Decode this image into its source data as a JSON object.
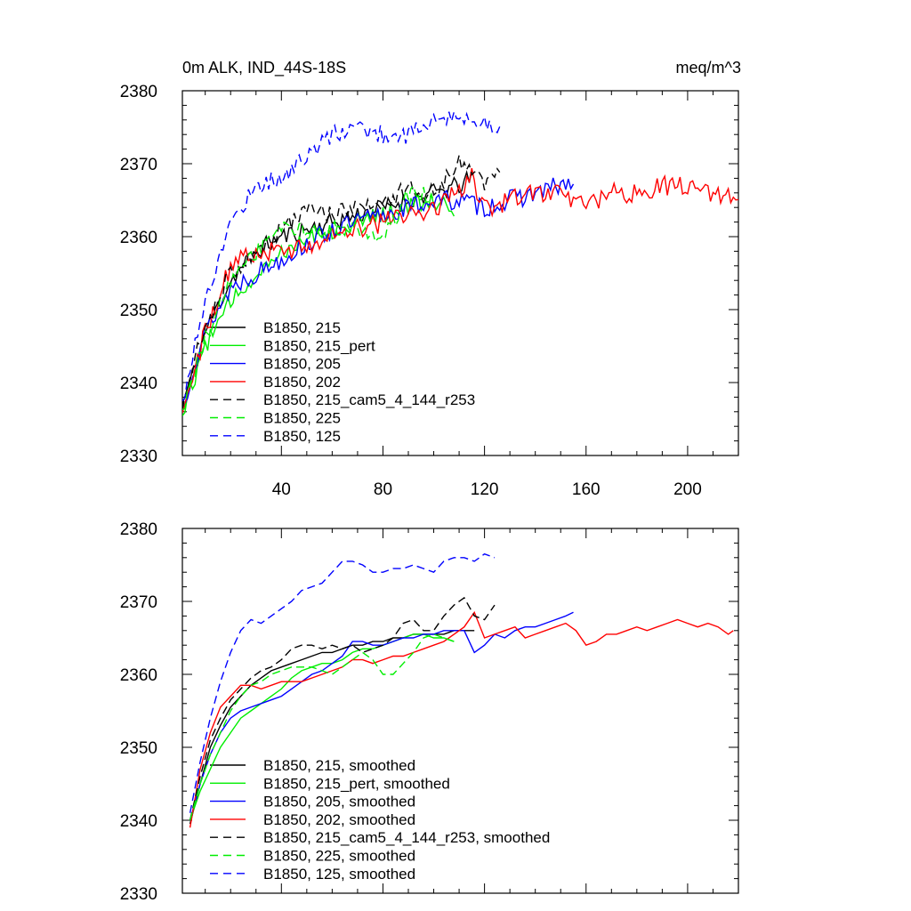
{
  "figure": {
    "title_left": "0m ALK, IND_44S-18S",
    "title_right": "meq/m^3"
  },
  "chart_data": [
    {
      "type": "line",
      "title": "0m ALK, IND_44S-18S",
      "units": "meq/m^3",
      "xlim": [
        1,
        220
      ],
      "ylim": [
        2330,
        2380
      ],
      "x_ticks": [
        40,
        80,
        120,
        160,
        200
      ],
      "y_ticks": [
        2330,
        2340,
        2350,
        2360,
        2370,
        2380
      ],
      "legend_position": "lower-left",
      "series": [
        {
          "name": "B1850, 215",
          "color": "#000000",
          "dash": "solid",
          "noise": 1.3,
          "seed": 11,
          "x": [
            1,
            5,
            10,
            20,
            30,
            40,
            50,
            60,
            70,
            80,
            90,
            100,
            110,
            115
          ],
          "y": [
            2337,
            2341,
            2347,
            2354,
            2358,
            2360,
            2361,
            2362,
            2363,
            2364,
            2365,
            2366,
            2367,
            2368
          ]
        },
        {
          "name": "B1850, 215_pert",
          "color": "#00ee00",
          "dash": "solid",
          "noise": 1.3,
          "seed": 12,
          "x": [
            1,
            5,
            10,
            20,
            30,
            40,
            50,
            60,
            70,
            80,
            90,
            100,
            108
          ],
          "y": [
            2336,
            2340,
            2345,
            2351,
            2355,
            2358,
            2360,
            2361,
            2362,
            2363,
            2364,
            2365,
            2364
          ]
        },
        {
          "name": "B1850, 205",
          "color": "#0000ff",
          "dash": "solid",
          "noise": 1.4,
          "seed": 13,
          "x": [
            1,
            5,
            10,
            20,
            30,
            40,
            50,
            60,
            70,
            80,
            90,
            100,
            110,
            120,
            130,
            140,
            150,
            155
          ],
          "y": [
            2336,
            2342,
            2347,
            2353,
            2355,
            2357,
            2359,
            2361,
            2362,
            2363,
            2364,
            2365,
            2365,
            2364,
            2365,
            2366,
            2367,
            2367
          ]
        },
        {
          "name": "B1850, 202",
          "color": "#ff0000",
          "dash": "solid",
          "noise": 1.4,
          "seed": 14,
          "x": [
            1,
            5,
            10,
            20,
            30,
            40,
            50,
            60,
            70,
            80,
            90,
            100,
            110,
            115,
            120,
            130,
            140,
            150,
            160,
            170,
            180,
            190,
            200,
            210,
            220
          ],
          "y": [
            2336,
            2341,
            2347,
            2356,
            2358,
            2358,
            2359,
            2360,
            2361,
            2362,
            2363,
            2364,
            2366,
            2368,
            2364,
            2365,
            2366,
            2366,
            2364,
            2366,
            2366,
            2367,
            2367,
            2366,
            2366
          ]
        },
        {
          "name": "B1850, 215_cam5_4_144_r253",
          "color": "#000000",
          "dash": "dashed",
          "noise": 1.2,
          "seed": 15,
          "x": [
            1,
            5,
            10,
            20,
            30,
            40,
            50,
            60,
            70,
            80,
            90,
            100,
            110,
            115,
            120,
            126
          ],
          "y": [
            2337,
            2342,
            2348,
            2355,
            2358,
            2361,
            2364,
            2363,
            2364,
            2364,
            2367,
            2366,
            2370,
            2369,
            2367,
            2370
          ]
        },
        {
          "name": "B1850, 225",
          "color": "#00ee00",
          "dash": "dashed",
          "noise": 1.2,
          "seed": 16,
          "x": [
            1,
            5,
            10,
            20,
            30,
            40,
            50,
            60,
            70,
            75,
            80,
            85,
            90,
            95,
            100
          ],
          "y": [
            2336,
            2341,
            2346,
            2354,
            2358,
            2361,
            2361,
            2361,
            2361,
            2360,
            2360,
            2362,
            2366,
            2366,
            2365
          ]
        },
        {
          "name": "B1850, 125",
          "color": "#0000ff",
          "dash": "dashed",
          "noise": 1.3,
          "seed": 17,
          "x": [
            1,
            5,
            10,
            20,
            30,
            40,
            50,
            60,
            70,
            80,
            90,
            100,
            110,
            120,
            126
          ],
          "y": [
            2337,
            2344,
            2351,
            2362,
            2367,
            2368,
            2371,
            2374,
            2375,
            2374,
            2374,
            2376,
            2376,
            2376,
            2375
          ]
        }
      ]
    },
    {
      "type": "line",
      "title": "",
      "units": "",
      "xlim": [
        1,
        220
      ],
      "ylim": [
        2330,
        2380
      ],
      "x_ticks": [
        40,
        80,
        120,
        160,
        200
      ],
      "x_tick_labels_shown": false,
      "y_ticks": [
        2330,
        2340,
        2350,
        2360,
        2370,
        2380
      ],
      "legend_position": "lower-left",
      "series": [
        {
          "name": "B1850, 215, smoothed",
          "color": "#000000",
          "dash": "solid",
          "x": [
            4,
            8,
            12,
            16,
            20,
            24,
            28,
            32,
            36,
            40,
            44,
            48,
            52,
            56,
            60,
            64,
            68,
            72,
            76,
            80,
            84,
            88,
            92,
            96,
            100,
            104,
            108,
            112,
            116
          ],
          "y": [
            2339.5,
            2345,
            2350,
            2353,
            2355.5,
            2357,
            2358.5,
            2359.5,
            2360.5,
            2361,
            2361.5,
            2362,
            2362.5,
            2363,
            2363,
            2363.5,
            2364,
            2364,
            2364.5,
            2364.5,
            2365,
            2365,
            2365.5,
            2365.5,
            2365.5,
            2365.5,
            2366,
            2366,
            2366
          ]
        },
        {
          "name": "B1850, 215_pert, smoothed",
          "color": "#00ee00",
          "dash": "solid",
          "x": [
            4,
            8,
            12,
            16,
            20,
            24,
            28,
            32,
            36,
            40,
            44,
            48,
            52,
            56,
            60,
            64,
            68,
            72,
            76,
            80,
            84,
            88,
            92,
            96,
            100,
            104,
            108
          ],
          "y": [
            2340,
            2344,
            2347,
            2350,
            2352,
            2354,
            2355,
            2356,
            2357,
            2358,
            2359.5,
            2360.5,
            2361,
            2361.5,
            2361.5,
            2362,
            2363,
            2363.5,
            2363.5,
            2364,
            2364.5,
            2365,
            2365.5,
            2365.5,
            2365,
            2365,
            2364.5
          ]
        },
        {
          "name": "B1850, 205, smoothed",
          "color": "#0000ff",
          "dash": "solid",
          "x": [
            4,
            8,
            12,
            16,
            20,
            24,
            28,
            32,
            36,
            40,
            44,
            48,
            52,
            56,
            60,
            64,
            68,
            72,
            76,
            80,
            84,
            88,
            92,
            96,
            100,
            104,
            108,
            112,
            116,
            120,
            124,
            128,
            132,
            136,
            140,
            144,
            148,
            152,
            155
          ],
          "y": [
            2340,
            2345,
            2349,
            2352,
            2354,
            2355,
            2355.5,
            2356,
            2356.5,
            2357,
            2358,
            2359,
            2360,
            2360.5,
            2361.5,
            2362.5,
            2364.5,
            2364.5,
            2364,
            2364,
            2364.5,
            2365,
            2365,
            2365.5,
            2365.5,
            2366,
            2366,
            2366,
            2363,
            2364,
            2365.5,
            2365,
            2366,
            2366.5,
            2366.5,
            2367,
            2367.5,
            2368,
            2368.5
          ]
        },
        {
          "name": "B1850, 202, smoothed",
          "color": "#ff0000",
          "dash": "solid",
          "x": [
            4,
            8,
            12,
            16,
            20,
            24,
            28,
            32,
            36,
            40,
            44,
            48,
            52,
            56,
            60,
            64,
            68,
            72,
            76,
            80,
            84,
            88,
            92,
            96,
            100,
            104,
            108,
            112,
            116,
            120,
            124,
            128,
            132,
            136,
            140,
            144,
            148,
            152,
            156,
            160,
            164,
            168,
            172,
            176,
            180,
            184,
            188,
            192,
            196,
            200,
            204,
            208,
            212,
            216,
            218
          ],
          "y": [
            2339,
            2347,
            2352,
            2355.5,
            2357,
            2358.5,
            2358.5,
            2358,
            2358.5,
            2359,
            2359,
            2359,
            2359.5,
            2360,
            2360.5,
            2361,
            2362,
            2362,
            2361.5,
            2362,
            2362.5,
            2362.5,
            2363,
            2363.5,
            2364,
            2364.5,
            2365.5,
            2366.5,
            2368.5,
            2365,
            2365.5,
            2366,
            2366.5,
            2365,
            2365.5,
            2366,
            2366.5,
            2367,
            2366,
            2364,
            2364.5,
            2365.5,
            2365.5,
            2366,
            2366.5,
            2366,
            2366.5,
            2367,
            2367.5,
            2367,
            2366.5,
            2367,
            2366.5,
            2365.5,
            2366
          ]
        },
        {
          "name": "B1850, 215_cam5_4_144_r253, smoothed",
          "color": "#000000",
          "dash": "dashed",
          "x": [
            4,
            8,
            12,
            16,
            20,
            24,
            28,
            32,
            36,
            40,
            44,
            48,
            52,
            56,
            60,
            64,
            68,
            72,
            76,
            80,
            84,
            88,
            92,
            96,
            100,
            104,
            108,
            112,
            116,
            120,
            124
          ],
          "y": [
            2340,
            2346,
            2351,
            2354,
            2356.5,
            2358,
            2359.5,
            2360.5,
            2361,
            2362,
            2363.5,
            2364,
            2364,
            2363.5,
            2364,
            2363.5,
            2364,
            2363,
            2363.5,
            2364,
            2365,
            2367,
            2367.5,
            2366,
            2366,
            2368,
            2369.5,
            2370.5,
            2368,
            2367.5,
            2369.5
          ]
        },
        {
          "name": "B1850, 225, smoothed",
          "color": "#00ee00",
          "dash": "dashed",
          "x": [
            4,
            8,
            12,
            16,
            20,
            24,
            28,
            32,
            36,
            40,
            44,
            48,
            52,
            56,
            60,
            64,
            68,
            72,
            76,
            80,
            84,
            88,
            92,
            96,
            100,
            104,
            108
          ],
          "y": [
            2340,
            2345,
            2349,
            2352,
            2355,
            2357,
            2358.5,
            2359,
            2360,
            2360.5,
            2361,
            2361,
            2361,
            2360.5,
            2360,
            2361,
            2362,
            2363,
            2362,
            2360,
            2360,
            2361.5,
            2363,
            2365,
            2365.5,
            2365,
            2364.5
          ]
        },
        {
          "name": "B1850, 125, smoothed",
          "color": "#0000ff",
          "dash": "dashed",
          "x": [
            4,
            8,
            12,
            16,
            20,
            24,
            28,
            32,
            36,
            40,
            44,
            48,
            52,
            56,
            60,
            64,
            68,
            72,
            76,
            80,
            84,
            88,
            92,
            96,
            100,
            104,
            108,
            112,
            116,
            120,
            124
          ],
          "y": [
            2341,
            2348,
            2354,
            2359,
            2363,
            2366,
            2367.5,
            2367,
            2368,
            2369,
            2370,
            2371.5,
            2372,
            2372.5,
            2374,
            2375.5,
            2375.5,
            2375,
            2374,
            2374,
            2374.5,
            2374.5,
            2375,
            2374.5,
            2374,
            2375.5,
            2376,
            2376,
            2375.5,
            2376.5,
            2376
          ]
        }
      ]
    }
  ]
}
